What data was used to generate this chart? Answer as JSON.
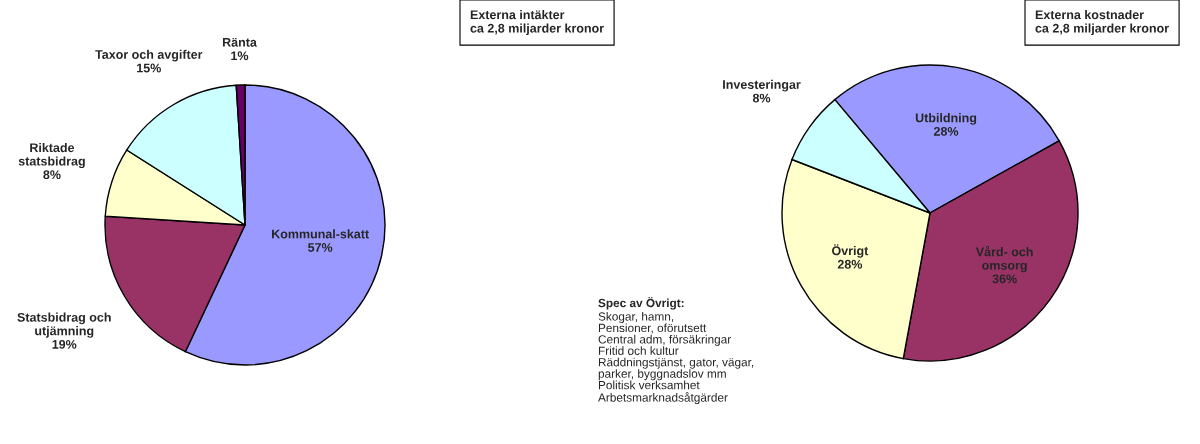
{
  "chart_data": [
    {
      "type": "pie",
      "title": "Externa intäkter\nca 2,8 miljarder kronor",
      "categories": [
        "Kommunal-skatt",
        "Statsbidrag och\nutjämning",
        "Riktade\nstatsbidrag",
        "Taxor och avgifter",
        "Ränta"
      ],
      "values": [
        57,
        19,
        8,
        15,
        1
      ],
      "value_labels": [
        "57%",
        "19%",
        "8%",
        "15%",
        "1%"
      ],
      "colors": [
        "#9999ff",
        "#993366",
        "#ffffcc",
        "#ccffff",
        "#660066"
      ]
    },
    {
      "type": "pie",
      "title": "Externa kostnader\nca 2,8 miljarder kronor",
      "categories": [
        "Utbildning",
        "Vård- och\nomsorg",
        "Övrigt",
        "Investeringar"
      ],
      "values": [
        28,
        36,
        28,
        8
      ],
      "value_labels": [
        "28%",
        "36%",
        "28%",
        "8%"
      ],
      "colors": [
        "#9999ff",
        "#993366",
        "#ffffcc",
        "#ccffff"
      ],
      "annotations": [
        "Spec av Övrigt:",
        "Skogar, hamn,\nPensioner, oförutsett\nCentral adm, försäkringar\nFritid och kultur\nRäddningstjänst, gator, vägar,\nparker, byggnadslov mm\nPolitisk verksamhet\nArbetsmarknadsåtgärder"
      ]
    }
  ]
}
